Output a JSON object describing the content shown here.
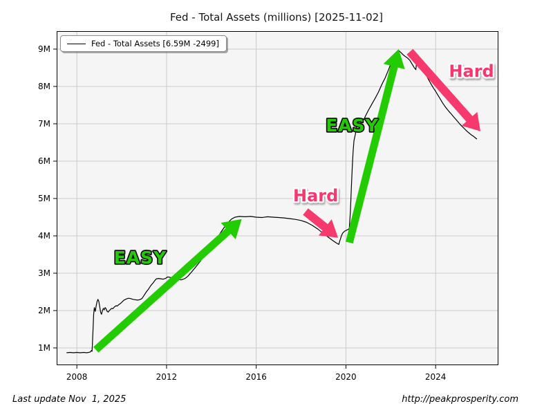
{
  "title": "Fed - Total Assets (millions) [2025-11-02]",
  "legend": {
    "label": "Fed - Total Assets [6.59M -2499]"
  },
  "footer": {
    "left": "Last update Nov  1, 2025",
    "right": "http://peakprosperity.com"
  },
  "colors": {
    "line": "#000000",
    "easy_green": "#22CC00",
    "easy_outline": "#101010",
    "hard_pink": "#F7396E",
    "hard_outline": "#ffffff",
    "plot_bg": "#f5f5f5",
    "grid": "#cbcbcb",
    "axis": "#000000"
  },
  "chart_data": {
    "type": "line",
    "title": "Fed - Total Assets (millions) [2025-11-02]",
    "xlabel": "",
    "ylabel": "",
    "grid": true,
    "legend_position": "upper left",
    "xlim": [
      2007.1,
      2026.8
    ],
    "ylim": [
      0.537,
      9.481
    ],
    "xticks": [
      {
        "v": 2008,
        "label": "2008"
      },
      {
        "v": 2012,
        "label": "2012"
      },
      {
        "v": 2016,
        "label": "2016"
      },
      {
        "v": 2020,
        "label": "2020"
      },
      {
        "v": 2024,
        "label": "2024"
      }
    ],
    "yticks": [
      {
        "v": 1,
        "label": "1M"
      },
      {
        "v": 2,
        "label": "2M"
      },
      {
        "v": 3,
        "label": "3M"
      },
      {
        "v": 4,
        "label": "4M"
      },
      {
        "v": 5,
        "label": "5M"
      },
      {
        "v": 6,
        "label": "6M"
      },
      {
        "v": 7,
        "label": "7M"
      },
      {
        "v": 8,
        "label": "8M"
      },
      {
        "v": 9,
        "label": "9M"
      }
    ],
    "series": [
      {
        "name": "Fed - Total Assets",
        "current_value": "6.59M",
        "weekly_change": "-2499",
        "points": [
          [
            2007.54,
            0.87
          ],
          [
            2007.7,
            0.88
          ],
          [
            2007.85,
            0.87
          ],
          [
            2008.0,
            0.88
          ],
          [
            2008.15,
            0.87
          ],
          [
            2008.3,
            0.88
          ],
          [
            2008.45,
            0.87
          ],
          [
            2008.6,
            0.89
          ],
          [
            2008.65,
            0.93
          ],
          [
            2008.68,
            0.91
          ],
          [
            2008.72,
            1.45
          ],
          [
            2008.75,
            1.9
          ],
          [
            2008.78,
            2.08
          ],
          [
            2008.82,
            1.98
          ],
          [
            2008.86,
            2.12
          ],
          [
            2008.9,
            2.24
          ],
          [
            2008.94,
            2.3
          ],
          [
            2008.98,
            2.24
          ],
          [
            2009.02,
            2.1
          ],
          [
            2009.06,
            1.95
          ],
          [
            2009.1,
            1.9
          ],
          [
            2009.14,
            2.0
          ],
          [
            2009.18,
            2.06
          ],
          [
            2009.22,
            2.02
          ],
          [
            2009.26,
            2.08
          ],
          [
            2009.3,
            2.05
          ],
          [
            2009.35,
            1.98
          ],
          [
            2009.4,
            1.96
          ],
          [
            2009.45,
            2.0
          ],
          [
            2009.5,
            2.03
          ],
          [
            2009.55,
            2.06
          ],
          [
            2009.6,
            2.05
          ],
          [
            2009.65,
            2.08
          ],
          [
            2009.7,
            2.11
          ],
          [
            2009.75,
            2.13
          ],
          [
            2009.8,
            2.12
          ],
          [
            2009.85,
            2.15
          ],
          [
            2009.9,
            2.17
          ],
          [
            2009.95,
            2.19
          ],
          [
            2010.0,
            2.22
          ],
          [
            2010.1,
            2.28
          ],
          [
            2010.2,
            2.31
          ],
          [
            2010.3,
            2.33
          ],
          [
            2010.4,
            2.32
          ],
          [
            2010.5,
            2.3
          ],
          [
            2010.6,
            2.29
          ],
          [
            2010.7,
            2.28
          ],
          [
            2010.8,
            2.29
          ],
          [
            2010.9,
            2.32
          ],
          [
            2011.0,
            2.41
          ],
          [
            2011.1,
            2.5
          ],
          [
            2011.2,
            2.58
          ],
          [
            2011.3,
            2.67
          ],
          [
            2011.4,
            2.74
          ],
          [
            2011.5,
            2.82
          ],
          [
            2011.55,
            2.85
          ],
          [
            2011.65,
            2.86
          ],
          [
            2011.75,
            2.85
          ],
          [
            2011.85,
            2.84
          ],
          [
            2011.95,
            2.86
          ],
          [
            2012.05,
            2.9
          ],
          [
            2012.15,
            2.89
          ],
          [
            2012.25,
            2.87
          ],
          [
            2012.35,
            2.88
          ],
          [
            2012.45,
            2.86
          ],
          [
            2012.55,
            2.83
          ],
          [
            2012.65,
            2.82
          ],
          [
            2012.75,
            2.84
          ],
          [
            2012.85,
            2.87
          ],
          [
            2012.95,
            2.92
          ],
          [
            2013.1,
            3.02
          ],
          [
            2013.25,
            3.13
          ],
          [
            2013.4,
            3.24
          ],
          [
            2013.55,
            3.36
          ],
          [
            2013.7,
            3.47
          ],
          [
            2013.85,
            3.6
          ],
          [
            2014.0,
            3.72
          ],
          [
            2014.15,
            3.85
          ],
          [
            2014.3,
            3.98
          ],
          [
            2014.45,
            4.12
          ],
          [
            2014.6,
            4.25
          ],
          [
            2014.75,
            4.36
          ],
          [
            2014.9,
            4.45
          ],
          [
            2015.05,
            4.5
          ],
          [
            2015.25,
            4.52
          ],
          [
            2015.5,
            4.51
          ],
          [
            2015.75,
            4.52
          ],
          [
            2016.0,
            4.5
          ],
          [
            2016.25,
            4.49
          ],
          [
            2016.5,
            4.51
          ],
          [
            2016.75,
            4.5
          ],
          [
            2017.0,
            4.49
          ],
          [
            2017.25,
            4.48
          ],
          [
            2017.5,
            4.46
          ],
          [
            2017.75,
            4.44
          ],
          [
            2018.0,
            4.41
          ],
          [
            2018.25,
            4.36
          ],
          [
            2018.5,
            4.28
          ],
          [
            2018.75,
            4.18
          ],
          [
            2019.0,
            4.06
          ],
          [
            2019.2,
            3.97
          ],
          [
            2019.4,
            3.88
          ],
          [
            2019.55,
            3.82
          ],
          [
            2019.68,
            3.77
          ],
          [
            2019.72,
            3.85
          ],
          [
            2019.76,
            3.92
          ],
          [
            2019.8,
            4.0
          ],
          [
            2019.85,
            4.07
          ],
          [
            2019.9,
            4.1
          ],
          [
            2019.95,
            4.13
          ],
          [
            2020.0,
            4.14
          ],
          [
            2020.05,
            4.16
          ],
          [
            2020.1,
            4.17
          ],
          [
            2020.15,
            4.2
          ],
          [
            2020.2,
            4.65
          ],
          [
            2020.24,
            5.25
          ],
          [
            2020.28,
            5.8
          ],
          [
            2020.32,
            6.25
          ],
          [
            2020.36,
            6.55
          ],
          [
            2020.42,
            6.72
          ],
          [
            2020.5,
            7.01
          ],
          [
            2020.55,
            6.98
          ],
          [
            2020.62,
            7.0
          ],
          [
            2020.7,
            7.04
          ],
          [
            2020.8,
            7.12
          ],
          [
            2020.9,
            7.24
          ],
          [
            2021.0,
            7.36
          ],
          [
            2021.15,
            7.52
          ],
          [
            2021.3,
            7.68
          ],
          [
            2021.45,
            7.85
          ],
          [
            2021.6,
            8.05
          ],
          [
            2021.75,
            8.23
          ],
          [
            2021.9,
            8.45
          ],
          [
            2022.0,
            8.6
          ],
          [
            2022.1,
            8.73
          ],
          [
            2022.2,
            8.86
          ],
          [
            2022.3,
            8.95
          ],
          [
            2022.35,
            8.96
          ],
          [
            2022.45,
            8.91
          ],
          [
            2022.55,
            8.85
          ],
          [
            2022.65,
            8.8
          ],
          [
            2022.75,
            8.76
          ],
          [
            2022.85,
            8.7
          ],
          [
            2022.95,
            8.6
          ],
          [
            2023.05,
            8.5
          ],
          [
            2023.12,
            8.45
          ],
          [
            2023.17,
            8.78
          ],
          [
            2023.22,
            8.7
          ],
          [
            2023.3,
            8.6
          ],
          [
            2023.4,
            8.5
          ],
          [
            2023.5,
            8.4
          ],
          [
            2023.6,
            8.28
          ],
          [
            2023.7,
            8.17
          ],
          [
            2023.8,
            8.06
          ],
          [
            2023.9,
            7.96
          ],
          [
            2024.0,
            7.87
          ],
          [
            2024.1,
            7.77
          ],
          [
            2024.2,
            7.67
          ],
          [
            2024.3,
            7.57
          ],
          [
            2024.4,
            7.48
          ],
          [
            2024.5,
            7.4
          ],
          [
            2024.6,
            7.33
          ],
          [
            2024.7,
            7.26
          ],
          [
            2024.8,
            7.19
          ],
          [
            2024.9,
            7.12
          ],
          [
            2025.0,
            7.05
          ],
          [
            2025.1,
            6.98
          ],
          [
            2025.2,
            6.92
          ],
          [
            2025.3,
            6.86
          ],
          [
            2025.4,
            6.8
          ],
          [
            2025.5,
            6.75
          ],
          [
            2025.6,
            6.7
          ],
          [
            2025.7,
            6.66
          ],
          [
            2025.78,
            6.62
          ],
          [
            2025.84,
            6.59
          ]
        ]
      }
    ],
    "annotations": {
      "texts": [
        {
          "text": "EASY",
          "x": 2010.83,
          "y": 3.43,
          "style": "easy"
        },
        {
          "text": "Hard",
          "x": 2018.65,
          "y": 5.09,
          "style": "hard"
        },
        {
          "text": "EASY",
          "x": 2020.28,
          "y": 6.96,
          "style": "easy"
        },
        {
          "text": "Hard",
          "x": 2025.6,
          "y": 8.43,
          "style": "hard"
        }
      ],
      "arrows": [
        {
          "from": [
            2008.85,
            0.95
          ],
          "to": [
            2015.35,
            4.45
          ],
          "style": "easy"
        },
        {
          "from": [
            2018.2,
            4.65
          ],
          "to": [
            2019.65,
            3.95
          ],
          "style": "hard"
        },
        {
          "from": [
            2020.15,
            3.82
          ],
          "to": [
            2022.35,
            9.0
          ],
          "style": "easy"
        },
        {
          "from": [
            2022.85,
            8.93
          ],
          "to": [
            2026.0,
            6.8
          ],
          "style": "hard"
        }
      ]
    }
  }
}
